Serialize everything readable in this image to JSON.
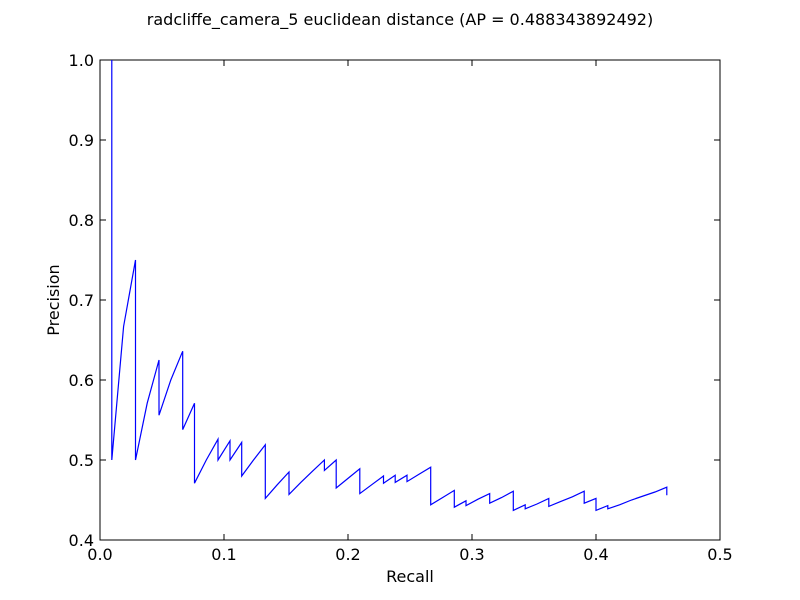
{
  "chart_data": {
    "type": "line",
    "title": "radcliffe_camera_5 euclidean distance  (AP = 0.488343892492)",
    "xlabel": "Recall",
    "ylabel": "Precision",
    "xlim": [
      0.0,
      0.5
    ],
    "ylim": [
      0.4,
      1.0
    ],
    "xticks": [
      "0.0",
      "0.1",
      "0.2",
      "0.3",
      "0.4",
      "0.5"
    ],
    "yticks": [
      "0.4",
      "0.5",
      "0.6",
      "0.7",
      "0.8",
      "0.9",
      "1.0"
    ],
    "grid": false,
    "line_color": "#0000ff",
    "series": [
      {
        "x": [
          0.0095,
          0.0095,
          0.0095,
          0.019,
          0.0286,
          0.0286,
          0.0381,
          0.0476,
          0.0476,
          0.0571,
          0.0667,
          0.0667,
          0.0762,
          0.0762,
          0.0857,
          0.0952,
          0.0952,
          0.1048,
          0.1048,
          0.1143,
          0.1143,
          0.1238,
          0.1333,
          0.1333,
          0.1429,
          0.1524,
          0.1524,
          0.1619,
          0.1714,
          0.181,
          0.181,
          0.1905,
          0.1905,
          0.2,
          0.2095,
          0.2095,
          0.219,
          0.2286,
          0.2286,
          0.2381,
          0.2381,
          0.2476,
          0.2476,
          0.2571,
          0.2667,
          0.2667,
          0.2762,
          0.2857,
          0.2857,
          0.2952,
          0.2952,
          0.3048,
          0.3143,
          0.3143,
          0.3238,
          0.3333,
          0.3333,
          0.3429,
          0.3429,
          0.3524,
          0.3619,
          0.3619,
          0.3714,
          0.381,
          0.3905,
          0.3905,
          0.4,
          0.4,
          0.4095,
          0.4095,
          0.419,
          0.4286,
          0.4381,
          0.4476,
          0.4571,
          0.4571
        ],
        "y": [
          1.0,
          0.5,
          0.5,
          0.667,
          0.75,
          0.5,
          0.571,
          0.625,
          0.556,
          0.6,
          0.636,
          0.538,
          0.571,
          0.471,
          0.5,
          0.526,
          0.5,
          0.524,
          0.5,
          0.522,
          0.48,
          0.5,
          0.519,
          0.452,
          0.469,
          0.485,
          0.457,
          0.472,
          0.486,
          0.5,
          0.487,
          0.5,
          0.465,
          0.477,
          0.489,
          0.458,
          0.469,
          0.48,
          0.471,
          0.481,
          0.472,
          0.481,
          0.473,
          0.482,
          0.491,
          0.444,
          0.453,
          0.462,
          0.441,
          0.449,
          0.443,
          0.451,
          0.458,
          0.446,
          0.453,
          0.461,
          0.437,
          0.444,
          0.439,
          0.445,
          0.452,
          0.442,
          0.448,
          0.454,
          0.461,
          0.446,
          0.452,
          0.437,
          0.443,
          0.439,
          0.444,
          0.45,
          0.455,
          0.46,
          0.466,
          0.456
        ]
      }
    ]
  }
}
